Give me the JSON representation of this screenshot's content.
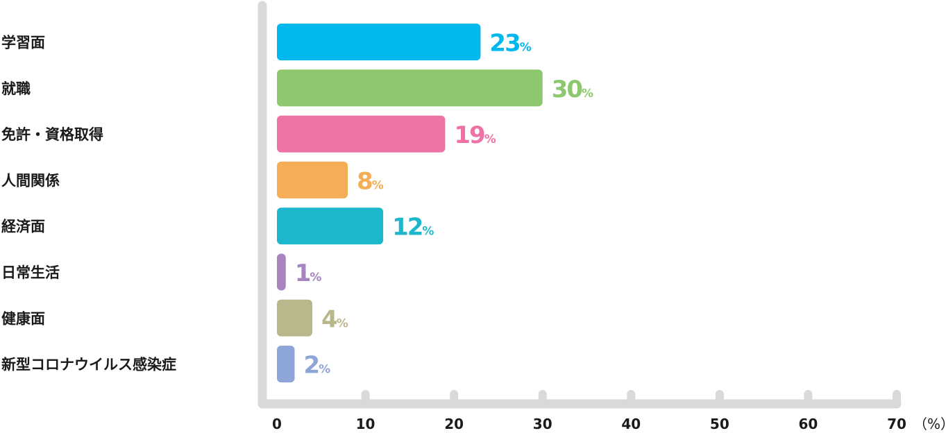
{
  "chart_data": {
    "type": "bar",
    "orientation": "horizontal",
    "categories": [
      "学習面",
      "就職",
      "免許・資格取得",
      "人間関係",
      "経済面",
      "日常生活",
      "健康面",
      "新型コロナウイルス感染症"
    ],
    "values": [
      23,
      30,
      19,
      8,
      12,
      1,
      4,
      2
    ],
    "value_suffix": "%",
    "colors": [
      "#00b8ee",
      "#8ec86e",
      "#ee72a5",
      "#f4ae55",
      "#1db7cd",
      "#a784bf",
      "#bab78a",
      "#8ea5d7"
    ],
    "x_ticks": [
      0,
      10,
      20,
      30,
      40,
      50,
      60,
      70
    ],
    "x_unit": "（%）",
    "xlim": [
      0,
      70
    ],
    "axis_color": "#d9d9d9",
    "grid": false
  }
}
